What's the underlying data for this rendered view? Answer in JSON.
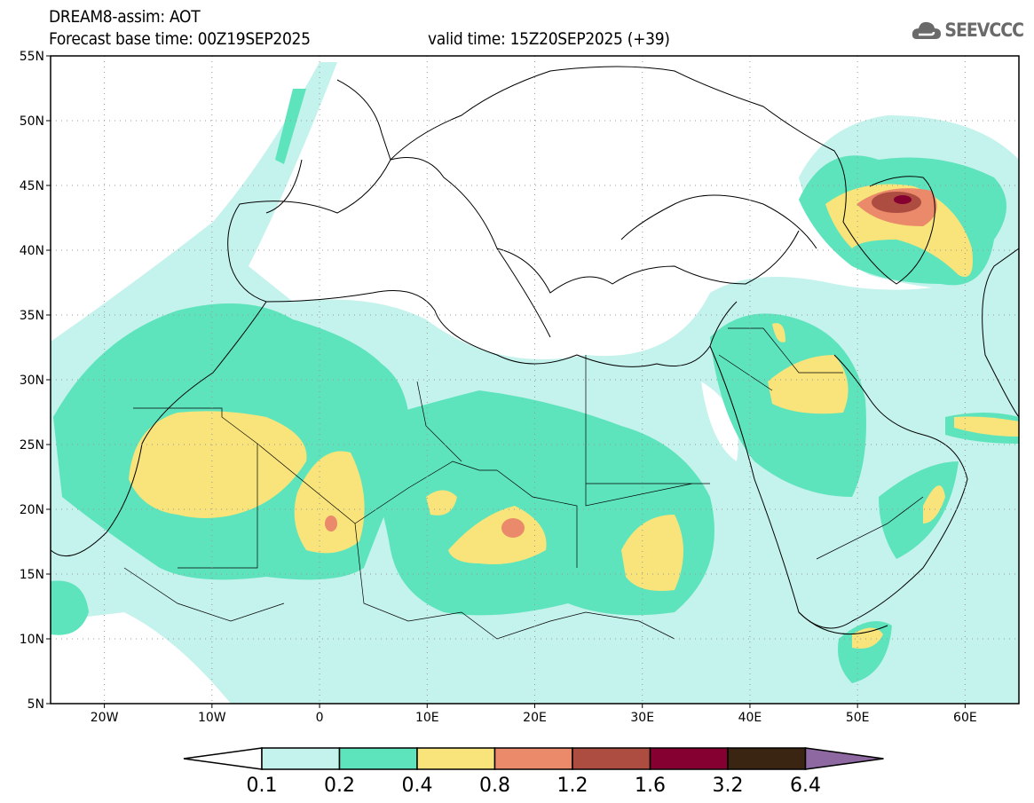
{
  "header": {
    "title": "DREAM8-assim: AOT",
    "base_time": "Forecast base time: 00Z19SEP2025",
    "valid_time": "valid time: 15Z20SEP2025 (+39)"
  },
  "logo": {
    "text": "SEEVCCC",
    "icon": "cloud-icon"
  },
  "map": {
    "lon_range": [
      -25,
      65
    ],
    "lat_range": [
      5,
      55
    ],
    "lat_labels": [
      "55N",
      "50N",
      "45N",
      "40N",
      "35N",
      "30N",
      "25N",
      "20N",
      "15N",
      "10N",
      "5N"
    ],
    "lon_labels": [
      "20W",
      "10W",
      "0",
      "10E",
      "20E",
      "30E",
      "40E",
      "50E",
      "60E"
    ]
  },
  "legend": {
    "labels": [
      "0.1",
      "0.2",
      "0.4",
      "0.8",
      "1.2",
      "1.6",
      "3.2",
      "6.4"
    ],
    "colors": [
      "#ffffff",
      "#c4f2ec",
      "#5ee4bc",
      "#f8e47a",
      "#ea8a6a",
      "#ad4c40",
      "#850030",
      "#3a2412",
      "#8e68a0"
    ]
  }
}
